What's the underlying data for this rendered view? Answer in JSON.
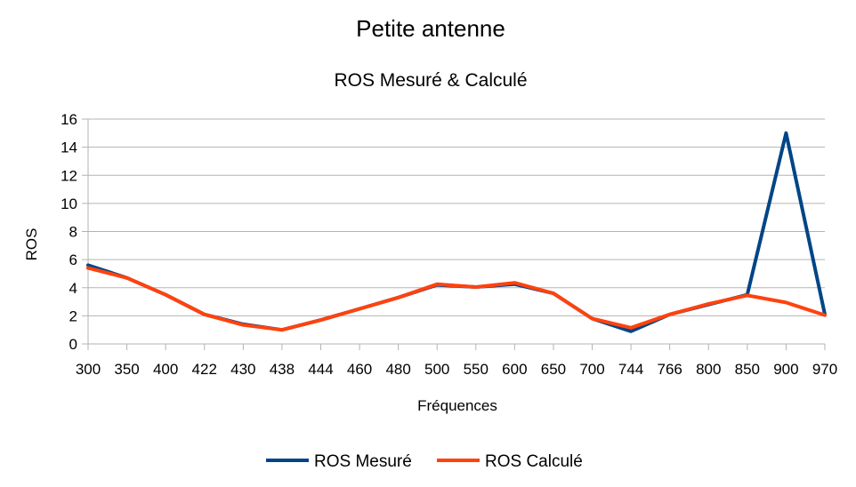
{
  "chart_data": {
    "type": "line",
    "title": "Petite antenne",
    "subtitle": "ROS Mesuré & Calculé",
    "xlabel": "Fréquences",
    "ylabel": "ROS",
    "categories": [
      "300",
      "350",
      "400",
      "422",
      "430",
      "438",
      "444",
      "460",
      "480",
      "500",
      "550",
      "600",
      "650",
      "700",
      "744",
      "766",
      "800",
      "850",
      "900",
      "970"
    ],
    "ylim": [
      0,
      16
    ],
    "yticks": [
      0,
      2,
      4,
      6,
      8,
      10,
      12,
      14,
      16
    ],
    "grid": true,
    "legend_position": "bottom",
    "series": [
      {
        "name": "ROS Mesuré",
        "color": "#004586",
        "values": [
          5.6,
          4.7,
          3.5,
          2.1,
          1.4,
          1.0,
          1.7,
          2.5,
          3.3,
          4.2,
          4.05,
          4.25,
          3.6,
          1.8,
          0.9,
          2.1,
          2.8,
          3.5,
          15.0,
          2.1
        ]
      },
      {
        "name": "ROS Calculé",
        "color": "#ff420e",
        "values": [
          5.4,
          4.7,
          3.5,
          2.1,
          1.35,
          1.0,
          1.7,
          2.5,
          3.3,
          4.25,
          4.05,
          4.35,
          3.6,
          1.8,
          1.15,
          2.1,
          2.85,
          3.45,
          2.95,
          2.05
        ]
      }
    ]
  }
}
